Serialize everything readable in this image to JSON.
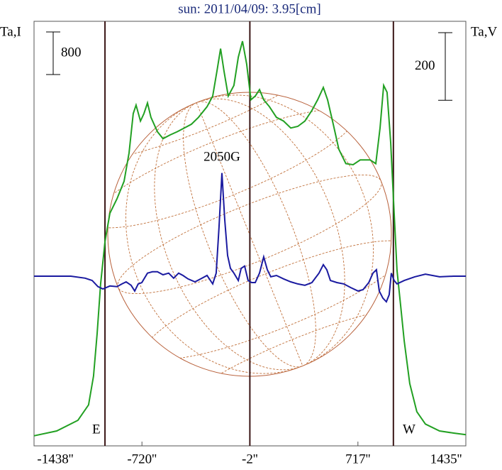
{
  "chart_data": {
    "type": "line",
    "title": "sun: 2011/04/09: 3.95[cm]",
    "ylabel": "Ta,I",
    "y2label": "Ta,V",
    "xlim": [
      -1438,
      1435
    ],
    "xticks": [
      {
        "value": -1438,
        "label": "-1438''"
      },
      {
        "value": -720,
        "label": "-720''"
      },
      {
        "value": -2,
        "label": "-2''"
      },
      {
        "value": 717,
        "label": "717''"
      },
      {
        "value": 1435,
        "label": "1435''"
      }
    ],
    "ylim": [
      0,
      8000
    ],
    "y2lim": [
      -500,
      760
    ],
    "y_scale_bar": 800,
    "y2_scale_bar": 200,
    "vlines": [
      -966,
      -2,
      953
    ],
    "limb_labels": [
      "E",
      "W"
    ],
    "annotation": "2050G",
    "series": [
      {
        "color": "#22a022",
        "x": [
          -1438,
          -1287,
          -1146,
          -1075,
          -1042,
          -1018,
          -995,
          -966,
          -933,
          -886,
          -839,
          -806,
          -778,
          -759,
          -730,
          -707,
          -683,
          -660,
          -617,
          -580,
          -532,
          -485,
          -438,
          -391,
          -344,
          -287,
          -249,
          -221,
          -197,
          -174,
          -146,
          -108,
          -79,
          -51,
          -23,
          5,
          34,
          62,
          90,
          128,
          175,
          222,
          270,
          317,
          364,
          411,
          449,
          487,
          515,
          553,
          590,
          637,
          685,
          732,
          798,
          836,
          864,
          888,
          911,
          935,
          958,
          977,
          1001,
          1025,
          1062,
          1109,
          1166,
          1260,
          1354,
          1435
        ],
        "values": [
          190,
          280,
          480,
          770,
          1310,
          2110,
          3040,
          3840,
          4370,
          4640,
          4970,
          5500,
          6240,
          6400,
          6100,
          6240,
          6440,
          6170,
          5900,
          5770,
          5840,
          5900,
          5970,
          6040,
          6170,
          6370,
          6570,
          7040,
          7460,
          7040,
          6570,
          6770,
          7300,
          7600,
          7170,
          6500,
          6570,
          6690,
          6500,
          6370,
          6170,
          6100,
          5970,
          6000,
          6100,
          6300,
          6500,
          6730,
          6500,
          6040,
          5570,
          5300,
          5280,
          5370,
          5370,
          5300,
          5970,
          6770,
          6640,
          5700,
          4370,
          3300,
          2640,
          1970,
          1170,
          640,
          410,
          280,
          240,
          210
        ]
      },
      {
        "color": "#1a1aa0",
        "axis": "y2",
        "x": [
          -1438,
          -1193,
          -1098,
          -1051,
          -1013,
          -980,
          -933,
          -886,
          -853,
          -825,
          -792,
          -768,
          -745,
          -721,
          -683,
          -650,
          -617,
          -580,
          -542,
          -509,
          -476,
          -447,
          -414,
          -367,
          -320,
          -287,
          -249,
          -226,
          -207,
          -188,
          -169,
          -150,
          -131,
          -108,
          -79,
          -60,
          -37,
          -14,
          10,
          34,
          62,
          90,
          114,
          137,
          175,
          222,
          270,
          317,
          364,
          411,
          458,
          487,
          510,
          534,
          577,
          623,
          670,
          718,
          751,
          789,
          817,
          840,
          859,
          883,
          906,
          925,
          939,
          958,
          977,
          1025,
          1095,
          1166,
          1260,
          1354,
          1435
        ],
        "values": [
          2,
          2,
          -4,
          -11,
          -29,
          -36,
          -27,
          -29,
          -21,
          -15,
          -25,
          -42,
          -21,
          -17,
          11,
          15,
          15,
          6,
          11,
          -4,
          11,
          4,
          -6,
          -15,
          -4,
          4,
          -21,
          11,
          147,
          307,
          168,
          63,
          25,
          11,
          -11,
          25,
          32,
          -11,
          -17,
          -17,
          11,
          59,
          21,
          0,
          4,
          -6,
          -15,
          -21,
          -25,
          -17,
          11,
          36,
          21,
          -11,
          -17,
          -21,
          -32,
          -42,
          -38,
          -17,
          11,
          21,
          -42,
          -63,
          -74,
          -53,
          11,
          -11,
          -21,
          -11,
          0,
          8,
          0,
          2,
          2
        ]
      }
    ]
  }
}
